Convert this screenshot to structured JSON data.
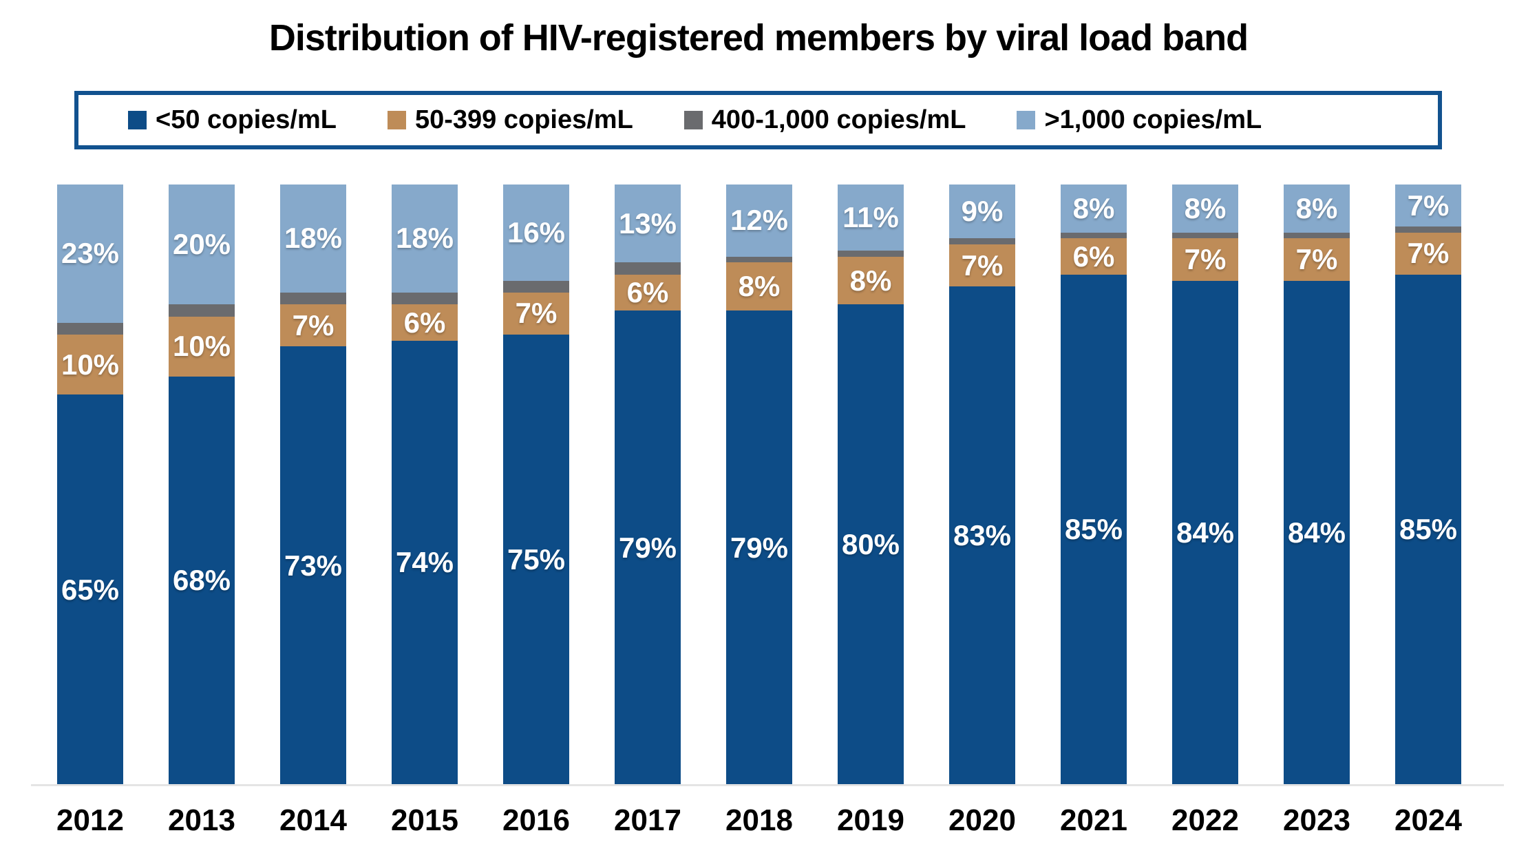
{
  "title": "Distribution of HIV-registered members by viral load band",
  "legend": {
    "position": "top",
    "border_color": "#12528F"
  },
  "axis": {
    "baseline_color": "#E4E4E4",
    "y_axis_visible": false,
    "gridlines": false
  },
  "chart_data": {
    "type": "bar",
    "stacked": true,
    "orientation": "vertical",
    "title": "Distribution of HIV-registered members by viral load band",
    "categories": [
      "2012",
      "2013",
      "2014",
      "2015",
      "2016",
      "2017",
      "2018",
      "2019",
      "2020",
      "2021",
      "2022",
      "2023",
      "2024"
    ],
    "series": [
      {
        "key": "under-50",
        "name": "<50 copies/mL",
        "color": "#0D4C87",
        "values": [
          65,
          68,
          73,
          74,
          75,
          79,
          79,
          80,
          83,
          85,
          84,
          84,
          85
        ],
        "labels_shown": true
      },
      {
        "key": "50-399",
        "name": "50-399 copies/mL",
        "color": "#BE8C58",
        "values": [
          10,
          10,
          7,
          6,
          7,
          6,
          8,
          8,
          7,
          6,
          7,
          7,
          7
        ],
        "labels_shown": true
      },
      {
        "key": "400-1000",
        "name": "400-1,000 copies/mL",
        "color": "#6A6B6E",
        "values": [
          2,
          2,
          2,
          2,
          2,
          2,
          1,
          1,
          1,
          1,
          1,
          1,
          1
        ],
        "labels_shown": false,
        "values_estimated_from_pixels": true
      },
      {
        "key": "over-1000",
        "name": ">1,000 copies/mL",
        "color": "#86A9CB",
        "values": [
          23,
          20,
          18,
          18,
          16,
          13,
          12,
          11,
          9,
          8,
          8,
          8,
          7
        ],
        "labels_shown": true
      }
    ],
    "ylim": [
      0,
      100
    ],
    "value_suffix": "%",
    "data_label_color": "#FFFFFF",
    "data_label_position": "center",
    "legend_position": "top",
    "gridlines": false,
    "y_axis_visible": false
  }
}
